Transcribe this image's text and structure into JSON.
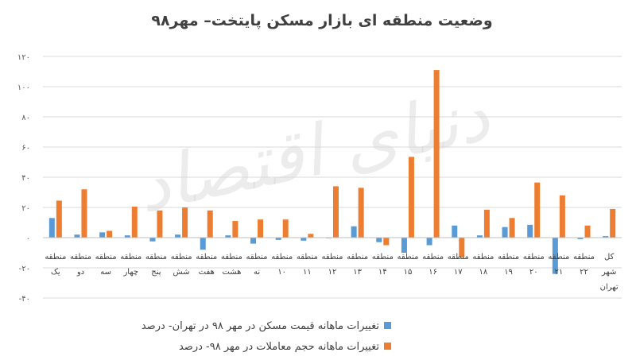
{
  "chart_data": {
    "type": "bar",
    "title": "وضعیت منطقه ای بازار مسکن پایتخت– مهر۹۸",
    "xlabel": "",
    "ylabel": "",
    "ylim": [
      -40,
      120
    ],
    "yticks": [
      {
        "value": 120,
        "label": "۱۲۰"
      },
      {
        "value": 100,
        "label": "۱۰۰"
      },
      {
        "value": 80,
        "label": "۸۰"
      },
      {
        "value": 60,
        "label": "۶۰"
      },
      {
        "value": 40,
        "label": "۴۰"
      },
      {
        "value": 20,
        "label": "۲۰"
      },
      {
        "value": 0,
        "label": "۰"
      },
      {
        "value": -20,
        "label": "-۲۰"
      },
      {
        "value": -40,
        "label": "-۴۰"
      }
    ],
    "grid": true,
    "legend_position": "bottom",
    "categories": [
      [
        "منطقه",
        "یک"
      ],
      [
        "منطقه",
        "دو"
      ],
      [
        "منطقه",
        "سه"
      ],
      [
        "منطقه",
        "چهار"
      ],
      [
        "منطقه",
        "پنج"
      ],
      [
        "منطقه",
        "شش"
      ],
      [
        "منطقه",
        "هفت"
      ],
      [
        "منطقه",
        "هشت"
      ],
      [
        "منطقه",
        "نه"
      ],
      [
        "منطقه",
        "۱۰"
      ],
      [
        "منطقه",
        "۱۱"
      ],
      [
        "منطقه",
        "۱۲"
      ],
      [
        "منطقه",
        "۱۳"
      ],
      [
        "منطقه",
        "۱۴"
      ],
      [
        "منطقه",
        "۱۵"
      ],
      [
        "منطقه",
        "۱۶"
      ],
      [
        "منطقه",
        "۱۷"
      ],
      [
        "منطقه",
        "۱۸"
      ],
      [
        "منطقه",
        "۱۹"
      ],
      [
        "منطقه",
        "۲۰"
      ],
      [
        "منطقه",
        "۲۱"
      ],
      [
        "منطقه",
        "۲۲"
      ],
      [
        "کل",
        "شهر",
        "تهران"
      ]
    ],
    "series": [
      {
        "name": "تغییرات ماهانه قیمت مسکن در مهر ۹۸ در تهران- درصد",
        "color": "#5b9bd5",
        "values": [
          13,
          2,
          3.5,
          1.5,
          -2.5,
          2,
          -8,
          1.5,
          -4,
          -1.5,
          -2,
          0,
          7.5,
          -3,
          -10,
          -5,
          8,
          1.5,
          7,
          8.5,
          -24,
          -1,
          1
        ]
      },
      {
        "name": "تغییرات ماهانه حجم معاملات در مهر ۹۸- درصد",
        "color": "#ed7d31",
        "values": [
          24.5,
          32,
          4.5,
          20.5,
          18,
          20,
          18,
          11,
          12,
          12,
          2.5,
          34,
          33,
          -5,
          53.5,
          111,
          -13,
          18.5,
          13,
          36.5,
          28,
          8,
          19
        ]
      }
    ],
    "watermark": "دنیای اقتصاد"
  }
}
